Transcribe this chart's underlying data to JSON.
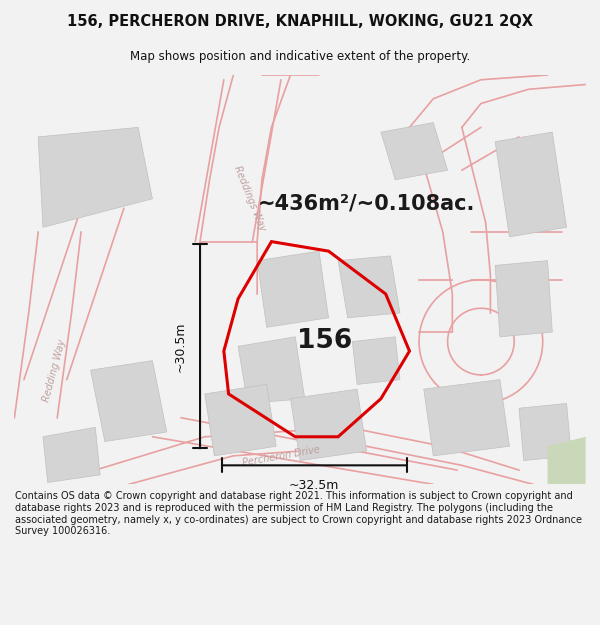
{
  "title_line1": "156, PERCHERON DRIVE, KNAPHILL, WOKING, GU21 2QX",
  "title_line2": "Map shows position and indicative extent of the property.",
  "area_text": "~436m²/~0.108ac.",
  "label_156": "156",
  "dim_horizontal": "~32.5m",
  "dim_vertical": "~30.5m",
  "footer_text": "Contains OS data © Crown copyright and database right 2021. This information is subject to Crown copyright and database rights 2023 and is reproduced with the permission of HM Land Registry. The polygons (including the associated geometry, namely x, y co-ordinates) are subject to Crown copyright and database rights 2023 Ordnance Survey 100026316.",
  "bg_color": "#f2f2f2",
  "map_bg": "#ffffff",
  "road_outline_color": "#e8a0a0",
  "building_color": "#d4d4d4",
  "building_edge": "#c0c0c0",
  "property_color": "#dd0000",
  "text_color": "#1a1a1a",
  "dim_color": "#111111",
  "road_label_color": "#c0a0a0",
  "title_color": "#111111",
  "green_color": "#c8d8b8"
}
